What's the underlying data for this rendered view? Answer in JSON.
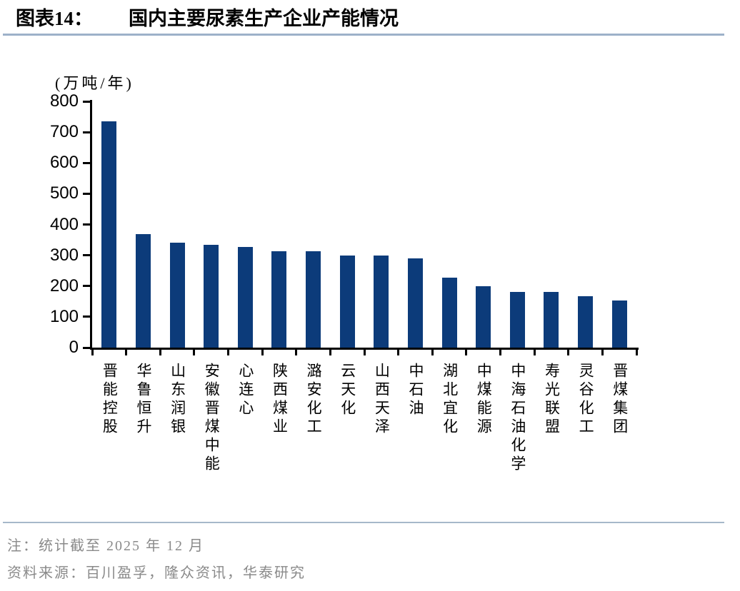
{
  "title": {
    "label": "图表14：",
    "text": "国内主要尿素生产企业产能情况"
  },
  "chart_data": {
    "type": "bar",
    "title": "国内主要尿素生产企业产能情况",
    "unit_label": "(万吨/年)",
    "ylabel": "万吨/年",
    "xlabel": "",
    "ylim": [
      0,
      800
    ],
    "yticks": [
      0,
      100,
      200,
      300,
      400,
      500,
      600,
      700,
      800
    ],
    "grid": false,
    "legend": false,
    "bar_color": "#0c3b7a",
    "categories": [
      "晋能控股",
      "华鲁恒升",
      "山东润银",
      "安徽晋煤中能",
      "心连心",
      "陕西煤业",
      "潞安化工",
      "云天化",
      "山西天泽",
      "中石油",
      "湖北宜化",
      "中煤能源",
      "中海石油化学",
      "寿光联盟",
      "灵谷化工",
      "晋煤集团"
    ],
    "values": [
      735,
      368,
      342,
      334,
      326,
      313,
      313,
      300,
      300,
      290,
      228,
      200,
      180,
      180,
      166,
      153
    ]
  },
  "footer": {
    "note": "注：统计截至 2025 年 12 月",
    "source": "资料来源：百川盈孚，隆众资讯，华泰研究"
  }
}
